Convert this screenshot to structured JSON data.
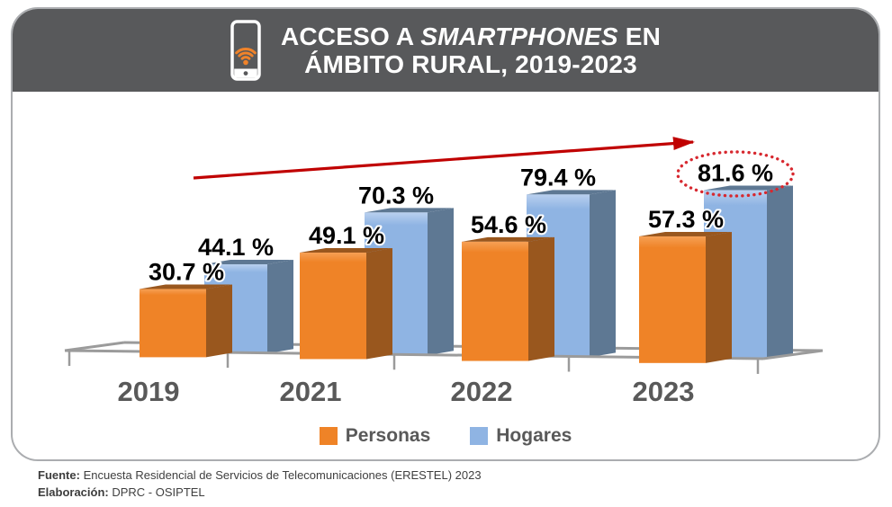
{
  "header": {
    "title_line1_pre": "ACCESO A ",
    "title_line1_italic": "SMARTPHONES",
    "title_line1_post": " EN",
    "title_line2": "ÁMBITO RURAL, 2019-2023",
    "icon": "smartphone-wifi-icon",
    "bg_color": "#58595B",
    "icon_accent_color": "#F0832A"
  },
  "chart_data": {
    "type": "bar",
    "title": "ACCESO A SMARTPHONES EN ÁMBITO RURAL, 2019-2023",
    "categories": [
      "2019",
      "2021",
      "2022",
      "2023"
    ],
    "series": [
      {
        "name": "Personas",
        "values": [
          30.7,
          49.1,
          54.6,
          57.3
        ],
        "color": "#EF8327",
        "side_color": "#99571E"
      },
      {
        "name": "Hogares",
        "values": [
          44.1,
          70.3,
          79.4,
          81.6
        ],
        "color": "#8FB4E3",
        "side_color": "#5E7893"
      }
    ],
    "value_suffix": " %",
    "value_labels": [
      "30.7 %",
      "49.1 %",
      "54.6 %",
      "57.3 %",
      "44.1 %",
      "70.3 %",
      "79.4 %",
      "81.6 %"
    ],
    "ylim": [
      0,
      100
    ],
    "grid": false,
    "legend_position": "bottom",
    "axis_color": "#9B9B9B",
    "annotations": {
      "trend_arrow": {
        "color": "#C00000",
        "direction": "up-right"
      },
      "highlight_circle": {
        "category": "2023",
        "series": "Hogares",
        "label": "81.6 %",
        "color": "#D7282F",
        "style": "dotted-ellipse"
      }
    }
  },
  "footer": {
    "source_label": "Fuente:",
    "source_text": " Encuesta Residencial de Servicios de Telecomunicaciones (ERESTEL) 2023",
    "elaboration_label": "Elaboración:",
    "elaboration_text": " DPRC - OSIPTEL"
  }
}
